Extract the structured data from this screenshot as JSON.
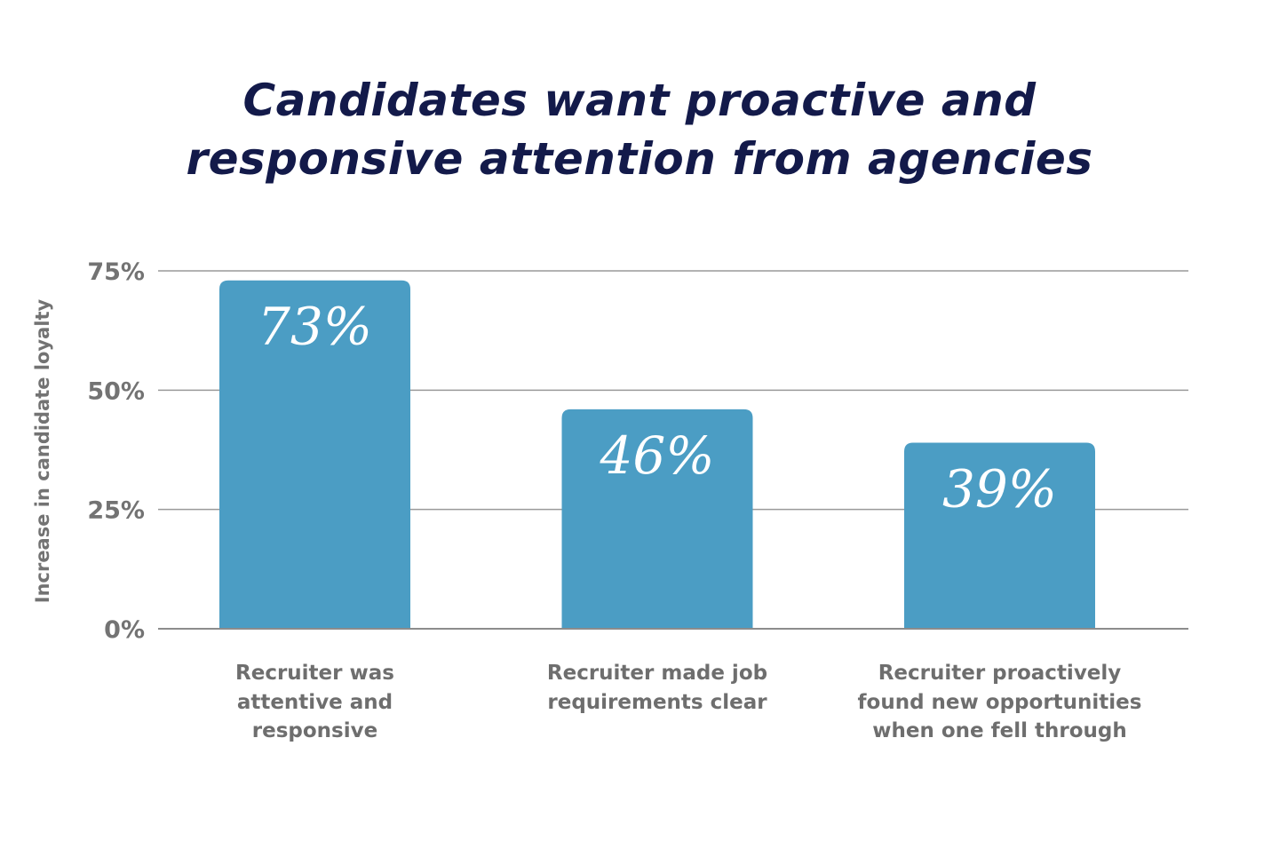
{
  "chart_data": {
    "type": "bar",
    "title": [
      "Candidates want proactive and",
      "responsive attention from agencies"
    ],
    "ylabel": "Increase in candidate loyalty",
    "xlabel": "",
    "ylim": [
      0,
      75
    ],
    "yticks": [
      0,
      25,
      50,
      75
    ],
    "ytick_labels": [
      "0%",
      "25%",
      "50%",
      "75%"
    ],
    "grid": true,
    "bar_color": "#4b9dc4",
    "title_color": "#131a4a",
    "categories": [
      [
        "Recruiter was",
        "attentive and",
        "responsive"
      ],
      [
        "Recruiter made job",
        "requirements clear"
      ],
      [
        "Recruiter proactively",
        "found new opportunities",
        "when one fell through"
      ]
    ],
    "values": [
      73,
      46,
      39
    ],
    "data_labels": [
      "73%",
      "46%",
      "39%"
    ]
  }
}
